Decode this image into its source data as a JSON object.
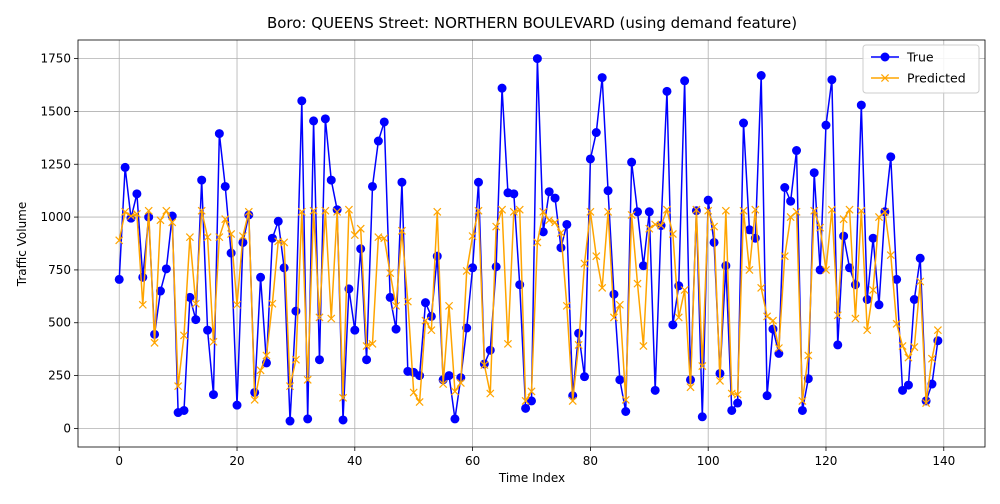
{
  "chart_data": {
    "type": "line",
    "title": "Boro: QUEENS Street: NORTHERN BOULEVARD (using demand feature)",
    "xlabel": "Time Index",
    "ylabel": "Traffic Volume",
    "xlim": [
      -7,
      147
    ],
    "ylim": [
      -88,
      1838
    ],
    "xticks": [
      "0",
      "20",
      "40",
      "60",
      "80",
      "100",
      "120",
      "140"
    ],
    "yticks": [
      "0",
      "250",
      "500",
      "750",
      "1000",
      "1250",
      "1500",
      "1750"
    ],
    "grid": true,
    "legend_position": "top-right",
    "x": [
      0,
      1,
      2,
      3,
      4,
      5,
      6,
      7,
      8,
      9,
      10,
      11,
      12,
      13,
      14,
      15,
      16,
      17,
      18,
      19,
      20,
      21,
      22,
      23,
      24,
      25,
      26,
      27,
      28,
      29,
      30,
      31,
      32,
      33,
      34,
      35,
      36,
      37,
      38,
      39,
      40,
      41,
      42,
      43,
      44,
      45,
      46,
      47,
      48,
      49,
      50,
      51,
      52,
      53,
      54,
      55,
      56,
      57,
      58,
      59,
      60,
      61,
      62,
      63,
      64,
      65,
      66,
      67,
      68,
      69,
      70,
      71,
      72,
      73,
      74,
      75,
      76,
      77,
      78,
      79,
      80,
      81,
      82,
      83,
      84,
      85,
      86,
      87,
      88,
      89,
      90,
      91,
      92,
      93,
      94,
      95,
      96,
      97,
      98,
      99,
      100,
      101,
      102,
      103,
      104,
      105,
      106,
      107,
      108,
      109,
      110,
      111,
      112,
      113,
      114,
      115,
      116,
      117,
      118,
      119,
      120,
      121,
      122,
      123,
      124,
      125,
      126,
      127,
      128,
      129,
      130,
      131,
      132,
      133,
      134,
      135,
      136,
      137,
      138,
      139
    ],
    "series": [
      {
        "name": "True",
        "color": "#0000ff",
        "marker": "o",
        "values": [
          705,
          1235,
          995,
          1110,
          715,
          1000,
          445,
          650,
          755,
          1005,
          75,
          85,
          620,
          515,
          1175,
          465,
          160,
          1395,
          1145,
          830,
          110,
          880,
          1010,
          170,
          715,
          310,
          900,
          980,
          760,
          35,
          555,
          1550,
          45,
          1455,
          325,
          1465,
          1175,
          1035,
          40,
          660,
          465,
          850,
          325,
          1145,
          1360,
          1450,
          620,
          470,
          1165,
          270,
          265,
          250,
          595,
          530,
          815,
          230,
          250,
          45,
          240,
          475,
          760,
          1165,
          305,
          370,
          765,
          1610,
          1115,
          1110,
          680,
          95,
          130,
          1750,
          930,
          1120,
          1090,
          855,
          965,
          155,
          450,
          245,
          1275,
          1400,
          1660,
          1125,
          635,
          230,
          80,
          1260,
          1025,
          770,
          1025,
          180,
          960,
          1595,
          490,
          675,
          1645,
          230,
          1030,
          55,
          1080,
          880,
          260,
          770,
          85,
          120,
          1445,
          940,
          900,
          1670,
          155,
          470,
          355,
          1140,
          1075,
          1315,
          85,
          235,
          1210,
          750,
          1435,
          1650,
          395,
          910,
          760,
          680,
          1530,
          610,
          900,
          585,
          1025,
          1285,
          705,
          180,
          205,
          610,
          805,
          130,
          210,
          415
        ]
      },
      {
        "name": "Predicted",
        "color": "#ffa500",
        "marker": "x",
        "values": [
          890,
          1025,
          1005,
          1015,
          585,
          1030,
          405,
          985,
          1030,
          975,
          200,
          440,
          905,
          590,
          1030,
          905,
          410,
          905,
          990,
          920,
          585,
          910,
          1025,
          135,
          275,
          345,
          590,
          885,
          880,
          200,
          325,
          1025,
          230,
          1030,
          525,
          1030,
          520,
          1025,
          145,
          1035,
          915,
          945,
          390,
          400,
          905,
          900,
          735,
          580,
          935,
          600,
          170,
          125,
          510,
          465,
          1025,
          210,
          580,
          175,
          215,
          745,
          910,
          1030,
          300,
          165,
          955,
          1035,
          400,
          1025,
          1035,
          130,
          175,
          880,
          1025,
          985,
          975,
          925,
          580,
          130,
          395,
          780,
          1025,
          815,
          665,
          1025,
          525,
          585,
          135,
          1010,
          685,
          390,
          945,
          965,
          960,
          1035,
          920,
          525,
          655,
          195,
          1035,
          295,
          1030,
          955,
          225,
          1030,
          165,
          160,
          1030,
          750,
          1035,
          665,
          530,
          510,
          380,
          815,
          1000,
          1025,
          130,
          345,
          1030,
          950,
          750,
          1035,
          535,
          990,
          1035,
          520,
          1030,
          465,
          655,
          1000,
          1025,
          820,
          495,
          390,
          335,
          385,
          695,
          120,
          330,
          465
        ]
      }
    ]
  }
}
